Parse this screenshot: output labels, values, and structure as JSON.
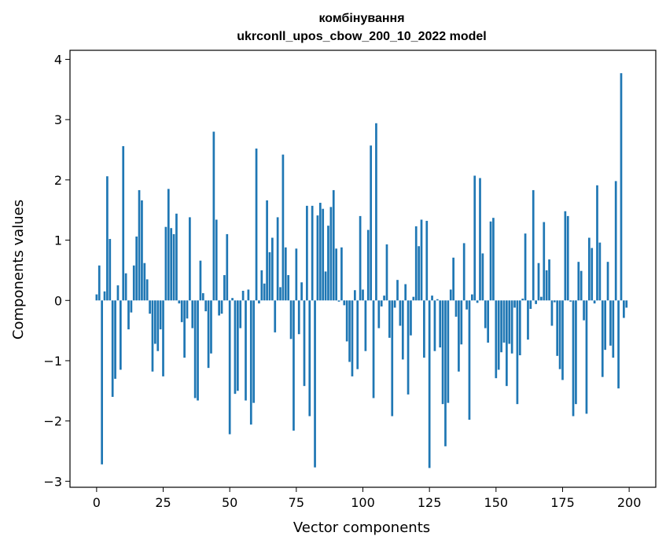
{
  "chart_data": {
    "type": "bar",
    "title_line1": "комбінування",
    "title_line2": "ukrconll_upos_cbow_200_10_2022 model",
    "xlabel": "Vector components",
    "ylabel": "Components values",
    "xlim": [
      -10,
      210
    ],
    "ylim": [
      -3.1,
      4.15
    ],
    "xticks": [
      0,
      25,
      50,
      75,
      100,
      125,
      150,
      175,
      200
    ],
    "yticks": [
      -3,
      -2,
      -1,
      0,
      1,
      2,
      3,
      4
    ],
    "ytick_labels": [
      "−3",
      "−2",
      "−1",
      "0",
      "1",
      "2",
      "3",
      "4"
    ],
    "bar_color": "#1f77b4",
    "grid": false,
    "values": [
      0.1,
      0.58,
      -2.72,
      0.15,
      2.06,
      1.02,
      -1.6,
      -1.3,
      0.25,
      -1.15,
      2.56,
      0.45,
      -0.48,
      -0.2,
      0.58,
      1.06,
      1.83,
      1.66,
      0.62,
      0.35,
      -0.22,
      -1.18,
      -0.72,
      -0.84,
      -0.48,
      -1.26,
      1.22,
      1.85,
      1.2,
      1.1,
      1.44,
      -0.05,
      -0.36,
      -0.95,
      -0.3,
      1.38,
      -0.46,
      -1.62,
      -1.66,
      0.66,
      0.12,
      -0.18,
      -1.12,
      -0.88,
      2.8,
      1.34,
      -0.25,
      -0.22,
      0.42,
      1.1,
      -2.22,
      0.04,
      -1.55,
      -1.5,
      -0.46,
      0.16,
      -1.66,
      0.18,
      -2.06,
      -1.7,
      2.52,
      -0.05,
      0.5,
      0.28,
      1.66,
      0.8,
      1.04,
      -0.53,
      1.38,
      0.22,
      2.42,
      0.88,
      0.42,
      -0.64,
      -2.16,
      0.86,
      -0.56,
      0.3,
      -1.42,
      1.57,
      -1.92,
      1.57,
      -2.77,
      1.41,
      1.62,
      1.52,
      0.48,
      1.24,
      1.55,
      1.83,
      0.86,
      -0.02,
      0.88,
      -0.08,
      -0.68,
      -1.02,
      -1.26,
      0.17,
      -1.14,
      1.4,
      0.18,
      -0.84,
      1.17,
      2.57,
      -1.62,
      2.94,
      -0.46,
      -0.1,
      0.08,
      0.93,
      -0.62,
      -1.92,
      -0.12,
      0.34,
      -0.42,
      -0.98,
      0.27,
      -1.56,
      -0.58,
      0.06,
      1.23,
      0.9,
      1.34,
      -0.95,
      1.32,
      -2.78,
      0.08,
      -0.84,
      0.02,
      -0.78,
      -1.72,
      -2.42,
      -1.7,
      0.18,
      0.71,
      -0.27,
      -1.18,
      -0.73,
      0.95,
      -0.15,
      -1.98,
      0.1,
      2.07,
      -0.04,
      2.03,
      0.78,
      -0.46,
      -0.7,
      1.31,
      1.37,
      -1.29,
      -1.15,
      -0.86,
      -0.7,
      -1.42,
      -0.72,
      -0.88,
      -0.12,
      -1.72,
      -0.91,
      0.03,
      1.11,
      -0.65,
      -0.14,
      1.83,
      -0.06,
      0.62,
      0.06,
      1.3,
      0.5,
      0.68,
      -0.42,
      -0.03,
      -0.92,
      -1.14,
      -1.32,
      1.48,
      1.4,
      -0.02,
      -1.92,
      -1.72,
      0.64,
      0.49,
      -0.33,
      -1.88,
      1.04,
      0.87,
      -0.05,
      1.91,
      0.96,
      -1.27,
      -0.82,
      0.64,
      -0.75,
      -0.95,
      1.98,
      -1.46,
      3.77,
      -0.29,
      -0.12
    ]
  }
}
